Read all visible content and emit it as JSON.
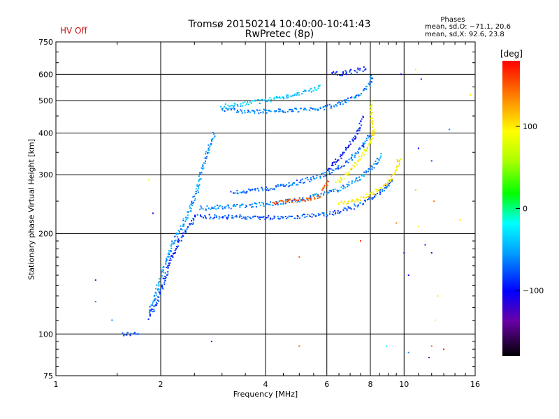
{
  "header": {
    "title_line1": "Tromsø 20150214 10:40:00-10:41:43",
    "title_line2": "RwPretec (8p)",
    "status": "HV Off",
    "status_color": "#cc1111"
  },
  "phases_box": {
    "heading": "Phases",
    "line_o": "mean, sd,O: −71.1, 20.6",
    "line_x": "mean, sd,X:  92.6, 23.8"
  },
  "colorbar": {
    "unit": "[deg]",
    "min": -180,
    "max": 180,
    "tick_values": [
      100,
      0,
      -100
    ],
    "tick_labels": [
      "100",
      "0",
      "−100"
    ]
  },
  "chart_data": {
    "type": "scatter",
    "title": "Tromsø 20150214 10:40:00-10:41:43",
    "subtitle": "RwPretec (8p)",
    "xlabel": "Frequency [MHz]",
    "ylabel": "Stationary phase Virtual Height [km]",
    "xscale": "log",
    "yscale": "log",
    "xlim": [
      1,
      16
    ],
    "ylim": [
      75,
      750
    ],
    "x_tick_values": [
      1,
      2,
      4,
      6,
      8,
      10,
      16
    ],
    "x_tick_labels": [
      "1",
      "2",
      "4",
      "6",
      "8",
      "10",
      "16"
    ],
    "y_tick_values": [
      75,
      100,
      200,
      300,
      400,
      500,
      600,
      750
    ],
    "y_tick_labels": [
      "75",
      "100",
      "200",
      "300",
      "400",
      "500",
      "600",
      "750"
    ],
    "grid": true,
    "color_encoding": "phase [deg], colorbar -180 to 180",
    "traces": [
      {
        "points": [
          [
            1.55,
            100
          ],
          [
            1.6,
            100
          ],
          [
            1.65,
            100
          ],
          [
            1.7,
            100
          ],
          [
            1.72,
            99
          ]
        ],
        "phase": -80
      },
      {
        "points": [
          [
            1.85,
            115
          ],
          [
            1.95,
            135
          ],
          [
            2.05,
            160
          ],
          [
            2.15,
            185
          ],
          [
            2.3,
            210
          ],
          [
            2.45,
            240
          ],
          [
            2.55,
            270
          ],
          [
            2.6,
            300
          ],
          [
            2.7,
            340
          ],
          [
            2.8,
            380
          ],
          [
            2.85,
            400
          ]
        ],
        "phase": -55
      },
      {
        "points": [
          [
            1.85,
            112
          ],
          [
            1.95,
            125
          ],
          [
            2.05,
            145
          ],
          [
            2.15,
            170
          ],
          [
            2.3,
            195
          ],
          [
            2.45,
            215
          ],
          [
            2.55,
            230
          ]
        ],
        "phase": -85
      },
      {
        "points": [
          [
            2.6,
            225
          ],
          [
            3,
            224
          ],
          [
            3.5,
            224
          ],
          [
            4,
            223
          ],
          [
            4.5,
            224
          ],
          [
            5,
            225
          ],
          [
            5.5,
            226
          ],
          [
            6,
            228
          ],
          [
            6.5,
            232
          ],
          [
            7,
            238
          ],
          [
            7.5,
            245
          ],
          [
            8,
            255
          ],
          [
            8.5,
            265
          ],
          [
            9,
            280
          ],
          [
            9.3,
            295
          ]
        ],
        "phase": -75
      },
      {
        "points": [
          [
            2.6,
            238
          ],
          [
            3,
            240
          ],
          [
            3.5,
            242
          ],
          [
            4,
            245
          ],
          [
            4.5,
            248
          ],
          [
            5,
            252
          ],
          [
            5.5,
            258
          ],
          [
            6,
            264
          ],
          [
            6.5,
            272
          ],
          [
            7,
            282
          ],
          [
            7.5,
            295
          ],
          [
            8,
            312
          ],
          [
            8.4,
            330
          ],
          [
            8.7,
            345
          ]
        ],
        "phase": -60
      },
      {
        "points": [
          [
            3.2,
            265
          ],
          [
            3.6,
            268
          ],
          [
            4,
            272
          ],
          [
            4.5,
            278
          ],
          [
            5,
            285
          ],
          [
            5.5,
            293
          ],
          [
            6,
            302
          ],
          [
            6.5,
            315
          ],
          [
            7,
            332
          ],
          [
            7.4,
            355
          ],
          [
            7.8,
            380
          ],
          [
            8,
            400
          ]
        ],
        "phase": -70
      },
      {
        "points": [
          [
            4.2,
            248
          ],
          [
            4.6,
            250
          ],
          [
            5,
            252
          ],
          [
            5.5,
            256
          ],
          [
            5.8,
            260
          ]
        ],
        "phase": 150
      },
      {
        "points": [
          [
            6.5,
            245
          ],
          [
            7,
            250
          ],
          [
            7.5,
            255
          ],
          [
            8,
            263
          ],
          [
            8.5,
            272
          ],
          [
            9,
            285
          ],
          [
            9.4,
            300
          ],
          [
            9.6,
            320
          ],
          [
            9.7,
            340
          ]
        ],
        "phase": 100
      },
      {
        "points": [
          [
            6.4,
            285
          ],
          [
            6.8,
            300
          ],
          [
            7.2,
            320
          ],
          [
            7.6,
            345
          ],
          [
            8,
            372
          ],
          [
            8.2,
            400
          ],
          [
            8.1,
            430
          ],
          [
            8,
            470
          ],
          [
            8.05,
            500
          ]
        ],
        "phase": 95
      },
      {
        "points": [
          [
            6,
            310
          ],
          [
            6.4,
            330
          ],
          [
            6.8,
            355
          ],
          [
            7.2,
            385
          ],
          [
            7.5,
            420
          ],
          [
            7.6,
            450
          ]
        ],
        "phase": -95
      },
      {
        "points": [
          [
            3,
            470
          ],
          [
            3.5,
            465
          ],
          [
            4,
            465
          ],
          [
            4.5,
            466
          ],
          [
            5,
            468
          ],
          [
            5.5,
            472
          ],
          [
            6,
            478
          ],
          [
            6.5,
            490
          ],
          [
            7,
            505
          ],
          [
            7.5,
            525
          ],
          [
            7.8,
            545
          ],
          [
            8,
            570
          ],
          [
            8.1,
            600
          ]
        ],
        "phase": -65
      },
      {
        "points": [
          [
            3,
            480
          ],
          [
            3.5,
            490
          ],
          [
            4,
            500
          ],
          [
            4.5,
            512
          ],
          [
            5,
            525
          ],
          [
            5.5,
            540
          ],
          [
            5.8,
            550
          ]
        ],
        "phase": -40
      },
      {
        "points": [
          [
            6.2,
            600
          ],
          [
            6.8,
            605
          ],
          [
            7.3,
            615
          ],
          [
            7.8,
            625
          ]
        ],
        "phase": -90
      },
      {
        "points": [
          [
            5.8,
            270
          ],
          [
            6,
            282
          ],
          [
            6.1,
            290
          ]
        ],
        "phase": 150
      }
    ],
    "scatter_points": [
      [
        1.3,
        145,
        -90
      ],
      [
        1.3,
        125,
        -60
      ],
      [
        1.45,
        110,
        -60
      ],
      [
        1.85,
        290,
        100
      ],
      [
        1.9,
        230,
        -110
      ],
      [
        2.8,
        95,
        -120
      ],
      [
        5,
        170,
        150
      ],
      [
        5,
        92,
        150
      ],
      [
        7.5,
        190,
        160
      ],
      [
        8.9,
        92,
        -25
      ],
      [
        9.5,
        215,
        140
      ],
      [
        10,
        175,
        -120
      ],
      [
        10.3,
        150,
        -100
      ],
      [
        10.8,
        270,
        110
      ],
      [
        11,
        210,
        100
      ],
      [
        11.5,
        185,
        -90
      ],
      [
        12,
        175,
        -100
      ],
      [
        12.5,
        130,
        100
      ],
      [
        12.3,
        110,
        90
      ],
      [
        12,
        92,
        150
      ],
      [
        11.8,
        85,
        -140
      ],
      [
        13,
        90,
        170
      ],
      [
        14.5,
        220,
        100
      ],
      [
        10.3,
        88,
        -60
      ],
      [
        9.8,
        600,
        -100
      ],
      [
        10.8,
        620,
        100
      ],
      [
        11.2,
        580,
        -90
      ],
      [
        11,
        360,
        -100
      ],
      [
        12,
        330,
        -80
      ],
      [
        13.5,
        410,
        -60
      ],
      [
        15.5,
        520,
        90
      ],
      [
        12.2,
        250,
        140
      ]
    ]
  }
}
